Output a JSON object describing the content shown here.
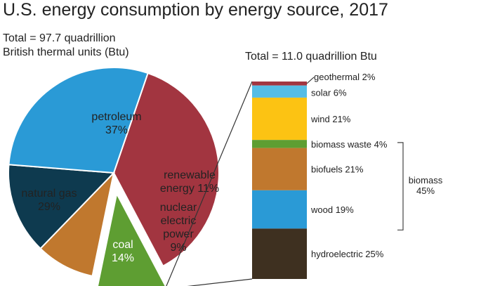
{
  "title": "U.S. energy consumption by energy source, 2017",
  "total_left": [
    "Total = 97.7 quadrillion",
    "British thermal units (Btu)"
  ],
  "total_right": "Total = 11.0 quadrillion Btu",
  "chart_data": [
    {
      "type": "pie",
      "total": "97.7 quadrillion British thermal units (Btu)",
      "slices": [
        {
          "name": "petroleum",
          "value": 37,
          "label": [
            "petroleum",
            "37%"
          ],
          "color": "#a23540"
        },
        {
          "name": "renewable energy",
          "value": 11,
          "label": [
            "renewable",
            "energy 11%"
          ],
          "color": "#5e9e32",
          "exploded": true
        },
        {
          "name": "nuclear electric power",
          "value": 9,
          "label": [
            "nuclear",
            "electric",
            "power",
            "9%"
          ],
          "color": "#c0782e"
        },
        {
          "name": "coal",
          "value": 14,
          "label": [
            "coal",
            "14%"
          ],
          "color": "#0e3a4f"
        },
        {
          "name": "natural gas",
          "value": 29,
          "label": [
            "natural gas",
            "29%"
          ],
          "color": "#2a9ad6"
        }
      ]
    },
    {
      "type": "bar",
      "stacked": true,
      "total": "11.0 quadrillion Btu",
      "segments": [
        {
          "name": "geothermal",
          "value": 2,
          "label": "geothermal 2%",
          "color": "#a23540"
        },
        {
          "name": "solar",
          "value": 6,
          "label": "solar 6%",
          "color": "#55bde6"
        },
        {
          "name": "wind",
          "value": 21,
          "label": "wind 21%",
          "color": "#fcc313"
        },
        {
          "name": "biomass waste",
          "value": 4,
          "label": "biomass waste 4%",
          "color": "#5e9e32"
        },
        {
          "name": "biofuels",
          "value": 21,
          "label": "biofuels 21%",
          "color": "#c0782e"
        },
        {
          "name": "wood",
          "value": 19,
          "label": "wood 19%",
          "color": "#2a9ad6"
        },
        {
          "name": "hydroelectric",
          "value": 25,
          "label": "hydroelectric 25%",
          "color": "#3e3020"
        }
      ],
      "bracket": {
        "label": [
          "biomass",
          "45%"
        ],
        "value": 45,
        "members": [
          "biomass waste",
          "biofuels",
          "wood"
        ]
      }
    }
  ]
}
